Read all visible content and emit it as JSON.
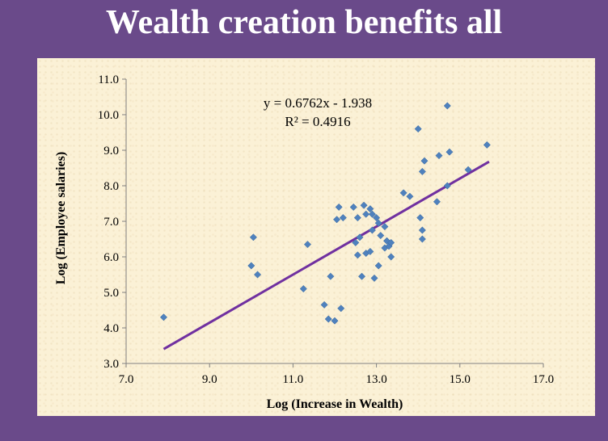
{
  "slide": {
    "title": "Wealth creation benefits all"
  },
  "chart_data": {
    "type": "scatter",
    "xlabel": "Log (Increase in Wealth)",
    "ylabel": "Log (Employee salaries)",
    "xlim": [
      7.0,
      17.0
    ],
    "ylim": [
      3.0,
      11.0
    ],
    "xticks": [
      "7.0",
      "9.0",
      "11.0",
      "13.0",
      "15.0",
      "17.0"
    ],
    "yticks": [
      "3.0",
      "4.0",
      "5.0",
      "6.0",
      "7.0",
      "8.0",
      "9.0",
      "10.0",
      "11.0"
    ],
    "grid": false,
    "marker_color": "#4f81bd",
    "trendline": {
      "equation": "y = 0.6762x - 1.938",
      "r_squared": "R² = 0.4916",
      "slope": 0.6762,
      "intercept": -1.938,
      "x_range": [
        7.9,
        15.7
      ],
      "color": "#7030a0"
    },
    "points": [
      [
        7.9,
        4.3
      ],
      [
        10.0,
        5.75
      ],
      [
        10.05,
        6.55
      ],
      [
        10.15,
        5.5
      ],
      [
        11.25,
        5.1
      ],
      [
        11.35,
        6.35
      ],
      [
        11.75,
        4.65
      ],
      [
        11.85,
        4.25
      ],
      [
        11.9,
        5.45
      ],
      [
        12.0,
        4.2
      ],
      [
        12.05,
        7.05
      ],
      [
        12.1,
        7.4
      ],
      [
        12.15,
        4.55
      ],
      [
        12.2,
        7.1
      ],
      [
        12.45,
        7.4
      ],
      [
        12.5,
        6.4
      ],
      [
        12.55,
        6.05
      ],
      [
        12.55,
        7.1
      ],
      [
        12.6,
        6.55
      ],
      [
        12.65,
        5.45
      ],
      [
        12.7,
        7.45
      ],
      [
        12.75,
        6.1
      ],
      [
        12.75,
        7.2
      ],
      [
        12.85,
        6.15
      ],
      [
        12.85,
        7.35
      ],
      [
        12.9,
        7.2
      ],
      [
        12.9,
        6.75
      ],
      [
        12.95,
        5.4
      ],
      [
        13.0,
        7.1
      ],
      [
        13.05,
        6.95
      ],
      [
        13.05,
        5.75
      ],
      [
        13.1,
        6.6
      ],
      [
        13.2,
        6.85
      ],
      [
        13.2,
        6.25
      ],
      [
        13.25,
        6.45
      ],
      [
        13.3,
        6.3
      ],
      [
        13.35,
        6.0
      ],
      [
        13.35,
        6.4
      ],
      [
        13.65,
        7.8
      ],
      [
        13.8,
        7.7
      ],
      [
        14.0,
        9.6
      ],
      [
        14.05,
        7.1
      ],
      [
        14.1,
        6.75
      ],
      [
        14.1,
        8.4
      ],
      [
        14.1,
        6.5
      ],
      [
        14.15,
        8.7
      ],
      [
        14.45,
        7.55
      ],
      [
        14.5,
        8.85
      ],
      [
        14.7,
        10.25
      ],
      [
        14.7,
        8.0
      ],
      [
        14.75,
        8.95
      ],
      [
        15.2,
        8.45
      ],
      [
        15.65,
        9.15
      ]
    ]
  }
}
